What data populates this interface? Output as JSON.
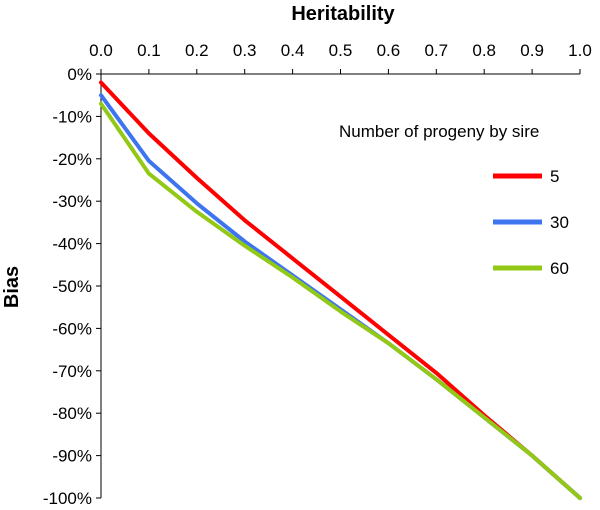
{
  "chart_data": {
    "type": "line",
    "xlabel": "Heritability",
    "ylabel": "Bias",
    "x": [
      0.0,
      0.1,
      0.2,
      0.3,
      0.4,
      0.5,
      0.6,
      0.7,
      0.8,
      0.9,
      1.0
    ],
    "x_tick_labels": [
      "0.0",
      "0.1",
      "0.2",
      "0.3",
      "0.4",
      "0.5",
      "0.6",
      "0.7",
      "0.8",
      "0.9",
      "1.0"
    ],
    "y_ticks": [
      0,
      -10,
      -20,
      -30,
      -40,
      -50,
      -60,
      -70,
      -80,
      -90,
      -100
    ],
    "y_tick_labels": [
      "0%",
      "-10%",
      "-20%",
      "-30%",
      "-40%",
      "-50%",
      "-60%",
      "-70%",
      "-80%",
      "-90%",
      "-100%"
    ],
    "xlim": [
      0,
      1
    ],
    "ylim": [
      -100,
      0
    ],
    "x_axis_position": "top",
    "grid": false,
    "legend": {
      "title": "Number of progeny by sire",
      "placement": "right"
    },
    "series": [
      {
        "name": "5",
        "color": "#ff0000",
        "values": [
          -2,
          -14,
          -24.5,
          -34.5,
          -43.5,
          -52.5,
          -61.5,
          -70.5,
          -80.5,
          -90,
          -100
        ]
      },
      {
        "name": "30",
        "color": "#3f74f0",
        "values": [
          -5,
          -20.5,
          -30.5,
          -39.5,
          -47.5,
          -55.5,
          -63.5,
          -72,
          -81,
          -90,
          -100
        ]
      },
      {
        "name": "60",
        "color": "#92c816",
        "values": [
          -7,
          -23.5,
          -32.5,
          -40.5,
          -48,
          -56,
          -63.5,
          -72,
          -81,
          -90,
          -100
        ]
      }
    ]
  }
}
